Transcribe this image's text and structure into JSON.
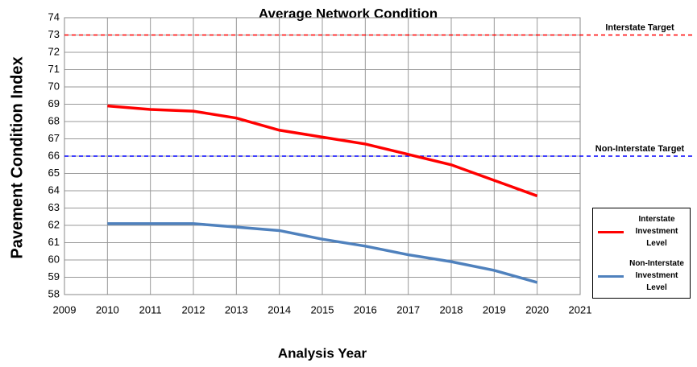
{
  "chart_data": {
    "type": "line",
    "title": "Average Network Condition",
    "x_label": "Analysis Year",
    "y_label": "Pavement Condition Index",
    "x": [
      2010,
      2011,
      2012,
      2013,
      2014,
      2015,
      2016,
      2017,
      2018,
      2019,
      2020
    ],
    "series": [
      {
        "name": "Interstate Investment Level",
        "color": "#ff0000",
        "values": [
          68.9,
          68.7,
          68.6,
          68.2,
          67.5,
          67.1,
          66.7,
          66.1,
          65.5,
          64.6,
          63.7
        ]
      },
      {
        "name": "Non-Interstate Investment Level",
        "color": "#4f81bd",
        "values": [
          62.1,
          62.1,
          62.1,
          61.9,
          61.7,
          61.2,
          60.8,
          60.3,
          59.9,
          59.4,
          58.7
        ]
      }
    ],
    "reference_lines": [
      {
        "label": "Interstate Target",
        "value": 73,
        "color": "#ff0000"
      },
      {
        "label": "Non-Interstate Target",
        "value": 66,
        "color": "#0000ff"
      }
    ],
    "xlim": [
      2009,
      2021
    ],
    "xticks": [
      2009,
      2010,
      2011,
      2012,
      2013,
      2014,
      2015,
      2016,
      2017,
      2018,
      2019,
      2020,
      2021
    ],
    "ylim": [
      58,
      74
    ],
    "yticks": [
      58,
      59,
      60,
      61,
      62,
      63,
      64,
      65,
      66,
      67,
      68,
      69,
      70,
      71,
      72,
      73,
      74
    ],
    "grid": true,
    "legend": "right"
  }
}
